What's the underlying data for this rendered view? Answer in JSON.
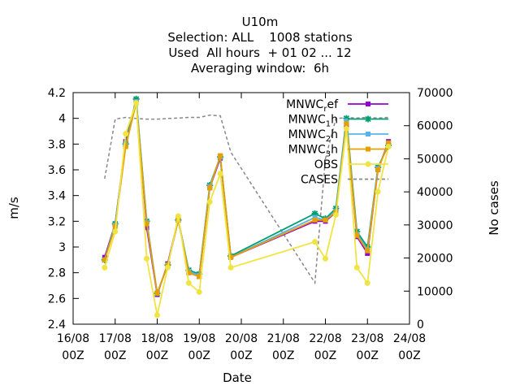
{
  "chart_data": {
    "type": "line",
    "title": "U10m",
    "subtitle_lines": [
      "Selection: ALL    1008 stations",
      "Used  All hours  + 01 02 ... 12",
      "Averaging window:  6h"
    ],
    "xlabel": "Date",
    "ylabel": "m/s",
    "y2label": "No cases",
    "xlim": [
      "2024-08-16 00:00",
      "2024-08-24 00:00"
    ],
    "ylim": [
      2.4,
      4.2
    ],
    "y2lim": [
      0,
      70000
    ],
    "xticks": [
      {
        "date": "2024-08-16 00:00",
        "label1": "16/08",
        "label2": "00Z"
      },
      {
        "date": "2024-08-17 00:00",
        "label1": "17/08",
        "label2": "00Z"
      },
      {
        "date": "2024-08-18 00:00",
        "label1": "18/08",
        "label2": "00Z"
      },
      {
        "date": "2024-08-19 00:00",
        "label1": "19/08",
        "label2": "00Z"
      },
      {
        "date": "2024-08-20 00:00",
        "label1": "20/08",
        "label2": "00Z"
      },
      {
        "date": "2024-08-21 00:00",
        "label1": "21/08",
        "label2": "00Z"
      },
      {
        "date": "2024-08-22 00:00",
        "label1": "22/08",
        "label2": "00Z"
      },
      {
        "date": "2024-08-23 00:00",
        "label1": "23/08",
        "label2": "00Z"
      },
      {
        "date": "2024-08-24 00:00",
        "label1": "24/08",
        "label2": "00Z"
      }
    ],
    "yticks": [
      "2.4",
      "2.6",
      "2.8",
      "3",
      "3.2",
      "3.4",
      "3.6",
      "3.8",
      "4",
      "4.2"
    ],
    "y2ticks": [
      "0",
      "10000",
      "20000",
      "30000",
      "40000",
      "50000",
      "60000",
      "70000"
    ],
    "grid": false,
    "legend_position": "top-right",
    "series": [
      {
        "legend": {
          "base": "MNWC",
          "sub": "r",
          "after": "ef"
        },
        "color": "#9400d3",
        "marker": "square",
        "x": [
          "2024-08-16 18:00",
          "2024-08-17 00:00",
          "2024-08-17 06:00",
          "2024-08-17 12:00",
          "2024-08-17 18:00",
          "2024-08-18 00:00",
          "2024-08-18 06:00",
          "2024-08-18 12:00",
          "2024-08-18 18:00",
          "2024-08-19 00:00",
          "2024-08-19 06:00",
          "2024-08-19 12:00",
          "2024-08-19 18:00",
          "2024-08-21 18:00",
          "2024-08-22 00:00",
          "2024-08-22 06:00",
          "2024-08-22 12:00",
          "2024-08-22 18:00",
          "2024-08-23 00:00",
          "2024-08-23 06:00",
          "2024-08-23 12:00"
        ],
        "values": [
          2.92,
          3.18,
          3.82,
          4.14,
          3.15,
          2.63,
          2.87,
          3.22,
          2.8,
          2.77,
          3.46,
          3.69,
          2.92,
          3.2,
          3.2,
          3.27,
          3.95,
          3.08,
          2.95,
          3.6,
          3.82
        ]
      },
      {
        "legend": {
          "base": "MNWC",
          "sub": "1",
          "after": "h"
        },
        "color": "#009e73",
        "marker": "star",
        "x": [
          "2024-08-16 18:00",
          "2024-08-17 00:00",
          "2024-08-17 06:00",
          "2024-08-17 12:00",
          "2024-08-17 18:00",
          "2024-08-18 00:00",
          "2024-08-18 06:00",
          "2024-08-18 12:00",
          "2024-08-18 18:00",
          "2024-08-19 00:00",
          "2024-08-19 06:00",
          "2024-08-19 12:00",
          "2024-08-19 18:00",
          "2024-08-21 18:00",
          "2024-08-22 00:00",
          "2024-08-22 06:00",
          "2024-08-22 12:00",
          "2024-08-22 18:00",
          "2024-08-23 00:00",
          "2024-08-23 06:00",
          "2024-08-23 12:00"
        ],
        "values": [
          2.9,
          3.18,
          3.8,
          4.15,
          3.2,
          2.64,
          2.86,
          3.21,
          2.82,
          2.79,
          3.48,
          3.7,
          2.93,
          3.26,
          3.22,
          3.3,
          4.0,
          3.12,
          3.0,
          3.62,
          3.79
        ]
      },
      {
        "legend": {
          "base": "MNWC",
          "sub": "2",
          "after": "h"
        },
        "color": "#56b4e9",
        "marker": "square",
        "x": [
          "2024-08-16 18:00",
          "2024-08-17 00:00",
          "2024-08-17 06:00",
          "2024-08-17 12:00",
          "2024-08-17 18:00",
          "2024-08-18 00:00",
          "2024-08-18 06:00",
          "2024-08-18 12:00",
          "2024-08-18 18:00",
          "2024-08-19 00:00",
          "2024-08-19 06:00",
          "2024-08-19 12:00",
          "2024-08-19 18:00",
          "2024-08-21 18:00",
          "2024-08-22 00:00",
          "2024-08-22 06:00",
          "2024-08-22 12:00",
          "2024-08-22 18:00",
          "2024-08-23 00:00",
          "2024-08-23 06:00",
          "2024-08-23 12:00"
        ],
        "values": [
          2.9,
          3.17,
          3.79,
          4.13,
          3.19,
          2.64,
          2.86,
          3.21,
          2.81,
          2.78,
          3.47,
          3.7,
          2.92,
          3.23,
          3.21,
          3.28,
          3.98,
          3.1,
          2.98,
          3.61,
          3.8
        ]
      },
      {
        "legend": {
          "base": "MNWC",
          "sub": "3",
          "after": "h"
        },
        "color": "#e69f00",
        "marker": "square",
        "x": [
          "2024-08-16 18:00",
          "2024-08-17 00:00",
          "2024-08-17 06:00",
          "2024-08-17 12:00",
          "2024-08-17 18:00",
          "2024-08-18 00:00",
          "2024-08-18 06:00",
          "2024-08-18 12:00",
          "2024-08-18 18:00",
          "2024-08-19 00:00",
          "2024-08-19 06:00",
          "2024-08-19 12:00",
          "2024-08-19 18:00",
          "2024-08-21 18:00",
          "2024-08-22 00:00",
          "2024-08-22 06:00",
          "2024-08-22 12:00",
          "2024-08-22 18:00",
          "2024-08-23 00:00",
          "2024-08-23 06:00",
          "2024-08-23 12:00"
        ],
        "values": [
          2.9,
          3.16,
          3.78,
          4.12,
          3.18,
          2.64,
          2.86,
          3.21,
          2.8,
          2.77,
          3.46,
          3.71,
          2.92,
          3.21,
          3.21,
          3.27,
          3.96,
          3.09,
          2.97,
          3.6,
          3.81
        ]
      },
      {
        "legend": {
          "base": "OBS",
          "sub": "",
          "after": ""
        },
        "color": "#f0e442",
        "marker": "circle",
        "x": [
          "2024-08-16 18:00",
          "2024-08-17 00:00",
          "2024-08-17 06:00",
          "2024-08-17 12:00",
          "2024-08-17 18:00",
          "2024-08-18 00:00",
          "2024-08-18 06:00",
          "2024-08-18 12:00",
          "2024-08-18 18:00",
          "2024-08-19 00:00",
          "2024-08-19 06:00",
          "2024-08-19 12:00",
          "2024-08-19 18:00",
          "2024-08-21 18:00",
          "2024-08-22 00:00",
          "2024-08-22 06:00",
          "2024-08-22 12:00",
          "2024-08-22 18:00",
          "2024-08-23 00:00",
          "2024-08-23 06:00",
          "2024-08-23 12:00"
        ],
        "values": [
          2.84,
          3.12,
          3.88,
          4.12,
          2.91,
          2.47,
          2.84,
          3.24,
          2.72,
          2.65,
          3.35,
          3.57,
          2.84,
          3.04,
          2.91,
          3.25,
          3.92,
          2.84,
          2.72,
          3.43,
          3.78
        ]
      }
    ],
    "cases": {
      "legend": "CASES",
      "color": "#888888",
      "x": [
        "2024-08-16 18:00",
        "2024-08-17 00:00",
        "2024-08-17 06:00",
        "2024-08-17 12:00",
        "2024-08-17 18:00",
        "2024-08-18 00:00",
        "2024-08-18 06:00",
        "2024-08-18 12:00",
        "2024-08-18 18:00",
        "2024-08-19 00:00",
        "2024-08-19 06:00",
        "2024-08-19 12:00",
        "2024-08-19 18:00",
        "2024-08-21 18:00",
        "2024-08-22 00:00",
        "2024-08-22 06:00",
        "2024-08-22 12:00",
        "2024-08-22 18:00",
        "2024-08-23 00:00",
        "2024-08-23 06:00",
        "2024-08-23 12:00"
      ],
      "values": [
        44000,
        62000,
        62500,
        62200,
        62000,
        62000,
        62200,
        62300,
        62500,
        62500,
        63200,
        63000,
        52000,
        12500,
        50000,
        62200,
        62400,
        62300,
        62500,
        62300,
        62500
      ]
    }
  }
}
